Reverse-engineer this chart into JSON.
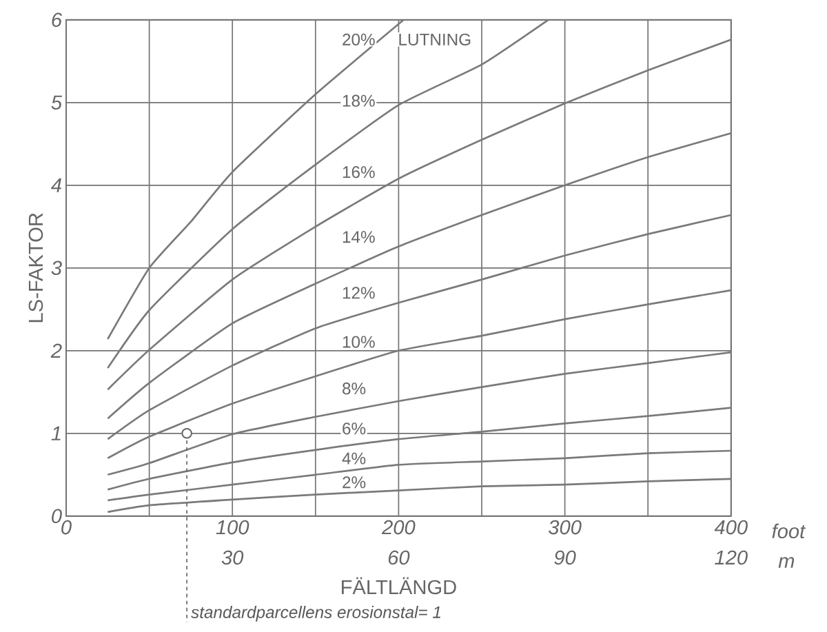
{
  "chart_data": {
    "type": "line",
    "xlabel": "FÄLTLÄNGD",
    "ylabel": "LS-FAKTOR",
    "x2label": "m",
    "xlim": [
      0,
      400
    ],
    "xticks": [
      0,
      {
        "value": 50,
        "label": null
      },
      100,
      {
        "value": 150,
        "label": null
      },
      200,
      {
        "value": 250,
        "label": null
      },
      300,
      {
        "value": 350,
        "label": null
      },
      400
    ],
    "x2lim": [
      0,
      120
    ],
    "x2ticks": [
      30,
      60,
      90,
      120
    ],
    "ylim": [
      0,
      6
    ],
    "yticks": [
      0,
      1,
      2,
      3,
      4,
      5,
      6
    ],
    "grid": true,
    "x": [
      25,
      50,
      100,
      150,
      200,
      250,
      300,
      350,
      400
    ],
    "series": [
      {
        "name": "2%",
        "color": "#7a7a7a",
        "values": [
          0.05,
          0.13,
          0.2,
          0.26,
          0.31,
          0.36,
          0.38,
          0.42,
          0.45
        ]
      },
      {
        "name": "4%",
        "color": "#7a7a7a",
        "values": [
          0.19,
          0.26,
          0.38,
          0.5,
          0.62,
          0.66,
          0.7,
          0.76,
          0.79
        ]
      },
      {
        "name": "6%",
        "color": "#7a7a7a",
        "values": [
          0.32,
          0.45,
          0.65,
          0.8,
          0.93,
          1.02,
          1.12,
          1.21,
          1.31
        ]
      },
      {
        "name": "8%",
        "color": "#7a7a7a",
        "values": [
          0.5,
          0.64,
          0.99,
          1.2,
          1.39,
          1.56,
          1.72,
          1.85,
          1.98
        ]
      },
      {
        "name": "10%",
        "color": "#7a7a7a",
        "values": [
          0.7,
          0.96,
          1.36,
          1.69,
          2.0,
          2.18,
          2.38,
          2.56,
          2.73
        ]
      },
      {
        "name": "12%",
        "color": "#7a7a7a",
        "values": [
          0.93,
          1.28,
          1.82,
          2.27,
          2.58,
          2.86,
          3.15,
          3.41,
          3.64
        ]
      },
      {
        "name": "14%",
        "color": "#7a7a7a",
        "values": [
          1.18,
          1.61,
          2.33,
          2.81,
          3.26,
          3.64,
          4.0,
          4.34,
          4.63
        ]
      },
      {
        "name": "16%",
        "color": "#7a7a7a",
        "values": [
          1.53,
          2.01,
          2.86,
          3.5,
          4.08,
          4.55,
          4.99,
          5.39,
          5.76
        ]
      },
      {
        "name": "18%",
        "color": "#7a7a7a",
        "x": [
          25,
          50,
          100,
          150,
          200,
          250,
          290
        ],
        "values": [
          1.79,
          2.49,
          3.47,
          4.25,
          4.97,
          5.46,
          6.0
        ]
      },
      {
        "name": "20%",
        "color": "#7a7a7a",
        "x": [
          25,
          50,
          75,
          100,
          150,
          203
        ],
        "values": [
          2.14,
          3.0,
          3.56,
          4.16,
          5.1,
          6.0
        ]
      }
    ],
    "annotations": [
      {
        "text": "standardparcellens erosionstal= 1",
        "x": 72.6,
        "y": 1
      },
      "LUTNING",
      "foot"
    ]
  }
}
